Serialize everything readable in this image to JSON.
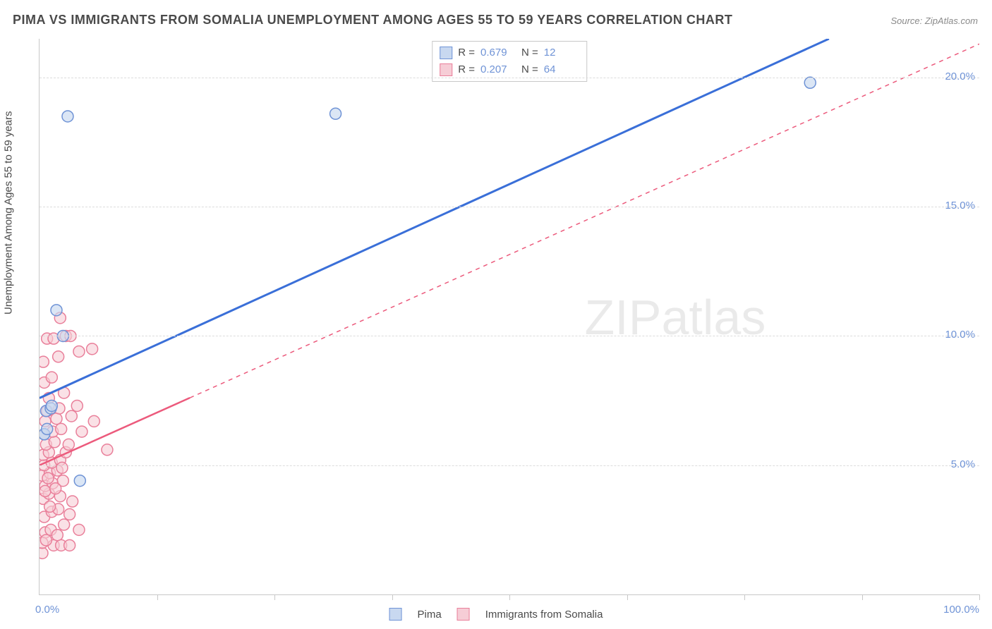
{
  "title": "PIMA VS IMMIGRANTS FROM SOMALIA UNEMPLOYMENT AMONG AGES 55 TO 59 YEARS CORRELATION CHART",
  "source": "Source: ZipAtlas.com",
  "y_axis_label": "Unemployment Among Ages 55 to 59 years",
  "watermark_a": "ZIP",
  "watermark_b": "atlas",
  "chart": {
    "type": "scatter",
    "xlim": [
      0,
      100
    ],
    "ylim": [
      0,
      21.5
    ],
    "x_ticks_pct": [
      12.5,
      25,
      37.5,
      50,
      62.5,
      75,
      87.5,
      100
    ],
    "x_tick_labels": {
      "0": "0.0%",
      "100": "100.0%"
    },
    "y_gridlines": [
      5,
      10,
      15,
      20
    ],
    "y_tick_labels": {
      "5": "5.0%",
      "10": "10.0%",
      "15": "15.0%",
      "20": "20.0%"
    },
    "grid_color": "#dcdcdc",
    "axis_color": "#c8c8c8",
    "axis_label_color": "#6f93d6",
    "background_color": "#ffffff",
    "series": [
      {
        "name": "Pima",
        "marker_fill": "#c8d8f0",
        "marker_stroke": "#6f93d6",
        "marker_opacity": 0.65,
        "marker_radius": 8,
        "line_color": "#3a6fd8",
        "line_width": 3,
        "line_dash": "none",
        "R": "0.679",
        "N": "12",
        "trend": {
          "x1": 0,
          "y1": 7.6,
          "x2": 84,
          "y2": 21.5
        },
        "points": [
          {
            "x": 0.5,
            "y": 6.2
          },
          {
            "x": 0.5,
            "y": 6.2
          },
          {
            "x": 0.7,
            "y": 7.1
          },
          {
            "x": 1.2,
            "y": 7.2
          },
          {
            "x": 1.3,
            "y": 7.3
          },
          {
            "x": 2.5,
            "y": 10.0
          },
          {
            "x": 1.8,
            "y": 11.0
          },
          {
            "x": 4.3,
            "y": 4.4
          },
          {
            "x": 3.0,
            "y": 18.5
          },
          {
            "x": 31.5,
            "y": 18.6
          },
          {
            "x": 82.0,
            "y": 19.8
          },
          {
            "x": 0.8,
            "y": 6.4
          }
        ]
      },
      {
        "name": "Immigrants from Somalia",
        "marker_fill": "#f6cdd6",
        "marker_stroke": "#e97f9a",
        "marker_opacity": 0.6,
        "marker_radius": 8,
        "line_color": "#ec5a7c",
        "line_width": 2.5,
        "line_dash": "6,6",
        "R": "0.207",
        "N": "64",
        "trend": {
          "x1": 0,
          "y1": 5.0,
          "x2": 100,
          "y2": 21.3
        },
        "trend_solid_until_x": 16,
        "points": [
          {
            "x": 0.3,
            "y": 1.6
          },
          {
            "x": 1.5,
            "y": 1.9
          },
          {
            "x": 2.3,
            "y": 1.9
          },
          {
            "x": 3.2,
            "y": 1.9
          },
          {
            "x": 0.6,
            "y": 2.4
          },
          {
            "x": 1.2,
            "y": 2.5
          },
          {
            "x": 2.6,
            "y": 2.7
          },
          {
            "x": 4.2,
            "y": 2.5
          },
          {
            "x": 0.5,
            "y": 3.0
          },
          {
            "x": 1.3,
            "y": 3.2
          },
          {
            "x": 2.0,
            "y": 3.3
          },
          {
            "x": 3.2,
            "y": 3.1
          },
          {
            "x": 0.4,
            "y": 3.7
          },
          {
            "x": 1.0,
            "y": 3.9
          },
          {
            "x": 2.2,
            "y": 3.8
          },
          {
            "x": 3.5,
            "y": 3.6
          },
          {
            "x": 0.6,
            "y": 4.2
          },
          {
            "x": 1.4,
            "y": 4.3
          },
          {
            "x": 2.5,
            "y": 4.4
          },
          {
            "x": 0.3,
            "y": 4.6
          },
          {
            "x": 1.1,
            "y": 4.7
          },
          {
            "x": 1.9,
            "y": 4.8
          },
          {
            "x": 0.5,
            "y": 5.0
          },
          {
            "x": 1.3,
            "y": 5.1
          },
          {
            "x": 2.2,
            "y": 5.2
          },
          {
            "x": 0.4,
            "y": 5.4
          },
          {
            "x": 1.0,
            "y": 5.5
          },
          {
            "x": 2.8,
            "y": 5.5
          },
          {
            "x": 0.7,
            "y": 5.8
          },
          {
            "x": 1.6,
            "y": 5.9
          },
          {
            "x": 3.1,
            "y": 5.8
          },
          {
            "x": 7.2,
            "y": 5.6
          },
          {
            "x": 0.5,
            "y": 6.2
          },
          {
            "x": 1.4,
            "y": 6.3
          },
          {
            "x": 2.3,
            "y": 6.4
          },
          {
            "x": 4.5,
            "y": 6.3
          },
          {
            "x": 0.6,
            "y": 6.7
          },
          {
            "x": 1.8,
            "y": 6.8
          },
          {
            "x": 3.4,
            "y": 6.9
          },
          {
            "x": 5.8,
            "y": 6.7
          },
          {
            "x": 0.8,
            "y": 7.1
          },
          {
            "x": 2.1,
            "y": 7.2
          },
          {
            "x": 4.0,
            "y": 7.3
          },
          {
            "x": 1.0,
            "y": 7.6
          },
          {
            "x": 2.6,
            "y": 7.8
          },
          {
            "x": 0.5,
            "y": 8.2
          },
          {
            "x": 1.3,
            "y": 8.4
          },
          {
            "x": 0.4,
            "y": 9.0
          },
          {
            "x": 2.0,
            "y": 9.2
          },
          {
            "x": 4.2,
            "y": 9.4
          },
          {
            "x": 5.6,
            "y": 9.5
          },
          {
            "x": 0.8,
            "y": 9.9
          },
          {
            "x": 1.5,
            "y": 9.9
          },
          {
            "x": 2.8,
            "y": 10.0
          },
          {
            "x": 3.3,
            "y": 10.0
          },
          {
            "x": 2.2,
            "y": 10.7
          },
          {
            "x": 0.6,
            "y": 4.0
          },
          {
            "x": 1.7,
            "y": 4.1
          },
          {
            "x": 0.9,
            "y": 4.5
          },
          {
            "x": 2.4,
            "y": 4.9
          },
          {
            "x": 1.1,
            "y": 3.4
          },
          {
            "x": 0.3,
            "y": 2.0
          },
          {
            "x": 0.7,
            "y": 2.1
          },
          {
            "x": 1.9,
            "y": 2.3
          }
        ]
      }
    ]
  },
  "bottom_legend": [
    {
      "label": "Pima",
      "fill": "#c8d8f0",
      "stroke": "#6f93d6"
    },
    {
      "label": "Immigrants from Somalia",
      "fill": "#f6cdd6",
      "stroke": "#e97f9a"
    }
  ]
}
